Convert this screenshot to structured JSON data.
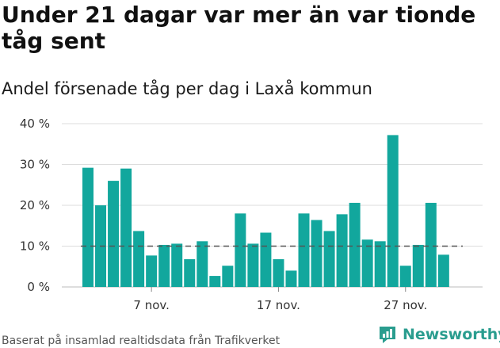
{
  "title": "Under 21 dagar var mer än var tionde tåg sent",
  "subtitle": "Andel försenade tåg per dag i Laxå kommun",
  "source": "Baserat på insamlad realtidsdata från Trafikverket",
  "brand": {
    "name": "Newsworthy",
    "icon": "newsworthy-logo-icon"
  },
  "colors": {
    "bar": "#12a79d",
    "grid": "#dddddd",
    "reference": "#555555",
    "brand": "#2a9d8f"
  },
  "chart_data": {
    "type": "bar",
    "y_ticks": [
      "0 %",
      "10 %",
      "20 %",
      "30 %",
      "40 %"
    ],
    "y_tick_values": [
      0,
      10,
      20,
      30,
      40
    ],
    "x_ticks": [
      {
        "label": "7 nov.",
        "index": 5
      },
      {
        "label": "17 nov.",
        "index": 15
      },
      {
        "label": "27 nov.",
        "index": 25
      }
    ],
    "values": [
      29.2,
      20.0,
      26.0,
      29.0,
      13.7,
      7.7,
      10.3,
      10.6,
      6.8,
      11.2,
      2.7,
      5.2,
      18.0,
      10.6,
      13.3,
      6.8,
      4.0,
      18.0,
      16.4,
      13.7,
      17.8,
      20.6,
      11.6,
      11.2,
      37.2,
      5.2,
      10.3,
      20.6,
      7.9
    ],
    "reference_line": 10,
    "ylim": [
      0,
      40
    ],
    "xlabel": "",
    "ylabel": "",
    "grid": true,
    "legend": "none"
  }
}
